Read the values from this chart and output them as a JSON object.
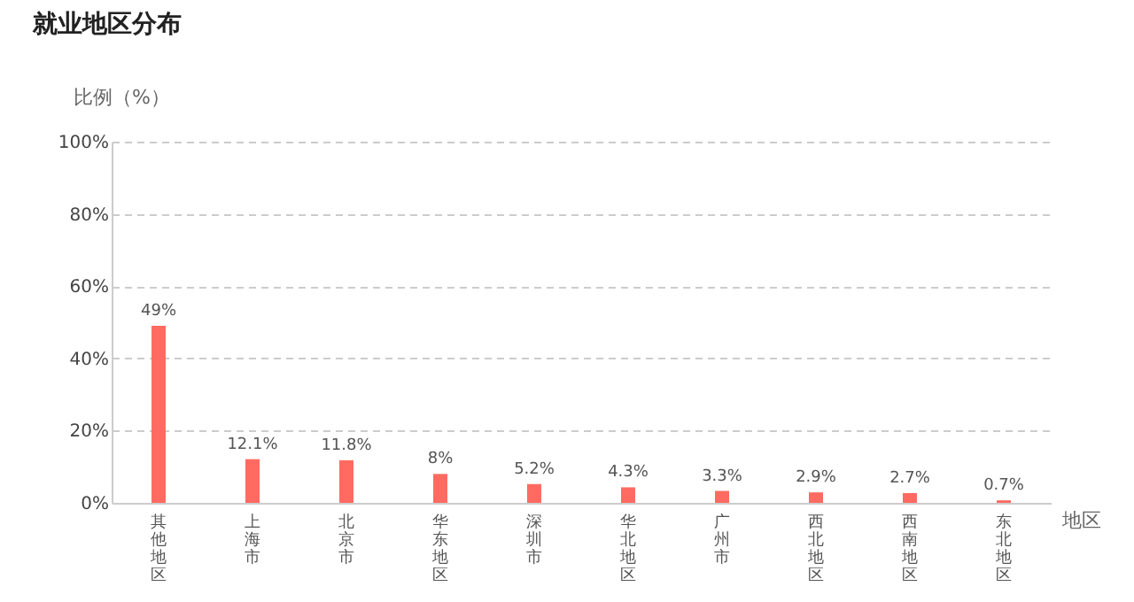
{
  "chart_data": {
    "type": "bar",
    "title": "就业地区分布",
    "xlabel": "地区",
    "ylabel": "比例（%）",
    "categories": [
      "其他地区",
      "上海市",
      "北京市",
      "华东地区",
      "深圳市",
      "华北地区",
      "广州市",
      "西北地区",
      "西南地区",
      "东北地区"
    ],
    "values": [
      49,
      12.1,
      11.8,
      8,
      5.2,
      4.3,
      3.3,
      2.9,
      2.7,
      0.7
    ],
    "value_labels": [
      "49%",
      "12.1%",
      "11.8%",
      "8%",
      "5.2%",
      "4.3%",
      "3.3%",
      "2.9%",
      "2.7%",
      "0.7%"
    ],
    "color": "#ff6b61",
    "ylim": [
      0,
      100
    ],
    "yticks": [
      {
        "value": 0,
        "label": "0%"
      },
      {
        "value": 20,
        "label": "20%"
      },
      {
        "value": 40,
        "label": "40%"
      },
      {
        "value": 60,
        "label": "60%"
      },
      {
        "value": 80,
        "label": "80%"
      },
      {
        "value": 100,
        "label": "100%"
      }
    ],
    "grid": "y"
  }
}
